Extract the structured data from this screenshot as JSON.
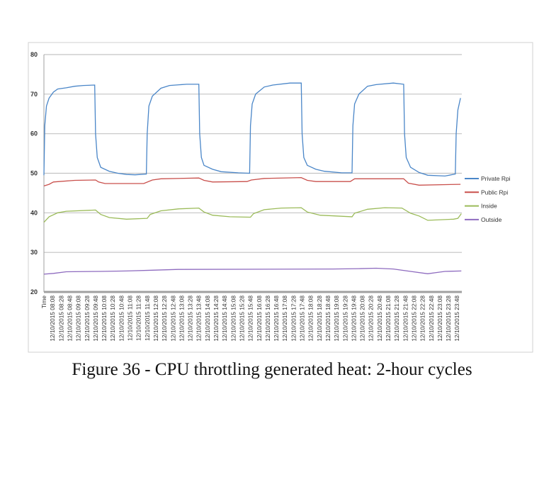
{
  "caption": "Figure 36 - CPU throttling generated heat: 2-hour cycles",
  "chart_data": {
    "type": "line",
    "title": "",
    "xlabel": "",
    "ylabel": "",
    "ylim": [
      20,
      80
    ],
    "yticks": [
      20,
      30,
      40,
      50,
      60,
      70,
      80
    ],
    "xlim": [
      "07:48",
      "23:59"
    ],
    "grid": "horizontal",
    "legend_position": "right",
    "x_tick_labels": [
      "Time",
      "12/10/2015 08:08",
      "12/10/2015 08:28",
      "12/10/2015 08:48",
      "12/10/2015 09:08",
      "12/10/2015 09:28",
      "12/10/2015 09:48",
      "12/10/2015 10:08",
      "12/10/2015 10:28",
      "12/10/2015 10:48",
      "12/10/2015 11:08",
      "12/10/2015 11:28",
      "12/10/2015 11:48",
      "12/10/2015 12:08",
      "12/10/2015 12:28",
      "12/10/2015 12:48",
      "12/10/2015 13:08",
      "12/10/2015 13:28",
      "12/10/2015 13:48",
      "12/10/2015 14:08",
      "12/10/2015 14:28",
      "12/10/2015 14:48",
      "12/10/2015 15:08",
      "12/10/2015 15:28",
      "12/10/2015 15:48",
      "12/10/2015 16:08",
      "12/10/2015 16:28",
      "12/10/2015 16:48",
      "12/10/2015 17:08",
      "12/10/2015 17:28",
      "12/10/2015 17:48",
      "12/10/2015 18:08",
      "12/10/2015 18:28",
      "12/10/2015 18:48",
      "12/10/2015 19:08",
      "12/10/2015 19:28",
      "12/10/2015 19:48",
      "12/10/2015 20:08",
      "12/10/2015 20:28",
      "12/10/2015 20:48",
      "12/10/2015 21:08",
      "12/10/2015 21:28",
      "12/10/2015 21:48",
      "12/10/2015 22:08",
      "12/10/2015 22:28",
      "12/10/2015 22:48",
      "12/10/2015 23:08",
      "12/10/2015 23:28",
      "12/10/2015 23:48"
    ],
    "series": [
      {
        "name": "Private Rpi",
        "color": "#4a86c8",
        "points": [
          [
            "07:48",
            49.5
          ],
          [
            "07:50",
            62
          ],
          [
            "07:54",
            67
          ],
          [
            "08:00",
            69
          ],
          [
            "08:10",
            70.5
          ],
          [
            "08:20",
            71.3
          ],
          [
            "08:40",
            71.6
          ],
          [
            "09:00",
            72
          ],
          [
            "09:20",
            72.2
          ],
          [
            "09:46",
            72.3
          ],
          [
            "09:48",
            60
          ],
          [
            "09:52",
            54
          ],
          [
            "10:00",
            51.5
          ],
          [
            "10:20",
            50.5
          ],
          [
            "10:40",
            50
          ],
          [
            "11:00",
            49.7
          ],
          [
            "11:20",
            49.6
          ],
          [
            "11:46",
            49.8
          ],
          [
            "11:48",
            60
          ],
          [
            "11:52",
            67
          ],
          [
            "12:00",
            69.5
          ],
          [
            "12:20",
            71.5
          ],
          [
            "12:40",
            72.2
          ],
          [
            "13:20",
            72.5
          ],
          [
            "13:48",
            72.5
          ],
          [
            "13:50",
            60
          ],
          [
            "13:54",
            54
          ],
          [
            "14:00",
            52
          ],
          [
            "14:20",
            51
          ],
          [
            "14:40",
            50.4
          ],
          [
            "15:20",
            50.1
          ],
          [
            "15:46",
            50
          ],
          [
            "15:48",
            62
          ],
          [
            "15:52",
            67.5
          ],
          [
            "16:00",
            70
          ],
          [
            "16:20",
            71.8
          ],
          [
            "16:40",
            72.3
          ],
          [
            "17:20",
            72.8
          ],
          [
            "17:46",
            72.8
          ],
          [
            "17:48",
            60
          ],
          [
            "17:52",
            54
          ],
          [
            "18:00",
            52
          ],
          [
            "18:20",
            51
          ],
          [
            "18:40",
            50.5
          ],
          [
            "19:20",
            50.1
          ],
          [
            "19:44",
            50.1
          ],
          [
            "19:46",
            62
          ],
          [
            "19:50",
            67.5
          ],
          [
            "20:00",
            70
          ],
          [
            "20:20",
            72
          ],
          [
            "20:40",
            72.4
          ],
          [
            "21:20",
            72.8
          ],
          [
            "21:44",
            72.5
          ],
          [
            "21:46",
            60
          ],
          [
            "21:50",
            54
          ],
          [
            "22:00",
            51.5
          ],
          [
            "22:20",
            50.2
          ],
          [
            "22:40",
            49.5
          ],
          [
            "23:20",
            49.3
          ],
          [
            "23:44",
            49.8
          ],
          [
            "23:46",
            60
          ],
          [
            "23:50",
            66
          ],
          [
            "23:56",
            69
          ]
        ]
      },
      {
        "name": "Public Rpi",
        "color": "#c9504c",
        "points": [
          [
            "07:48",
            46.8
          ],
          [
            "08:00",
            47.2
          ],
          [
            "08:10",
            47.8
          ],
          [
            "09:00",
            48.2
          ],
          [
            "09:48",
            48.3
          ],
          [
            "09:55",
            47.8
          ],
          [
            "10:10",
            47.4
          ],
          [
            "11:40",
            47.4
          ],
          [
            "12:00",
            48.3
          ],
          [
            "12:20",
            48.6
          ],
          [
            "13:48",
            48.8
          ],
          [
            "14:00",
            48.2
          ],
          [
            "14:20",
            47.8
          ],
          [
            "15:40",
            47.9
          ],
          [
            "15:50",
            48.3
          ],
          [
            "16:20",
            48.7
          ],
          [
            "17:46",
            48.9
          ],
          [
            "18:00",
            48.2
          ],
          [
            "18:20",
            47.9
          ],
          [
            "19:40",
            47.9
          ],
          [
            "19:50",
            48.6
          ],
          [
            "21:44",
            48.6
          ],
          [
            "21:55",
            47.5
          ],
          [
            "22:20",
            47.0
          ],
          [
            "23:56",
            47.2
          ]
        ]
      },
      {
        "name": "Inside",
        "color": "#9bbb59",
        "points": [
          [
            "07:48",
            37.6
          ],
          [
            "08:00",
            39
          ],
          [
            "08:20",
            40
          ],
          [
            "08:40",
            40.4
          ],
          [
            "09:48",
            40.7
          ],
          [
            "10:00",
            39.6
          ],
          [
            "10:20",
            38.8
          ],
          [
            "11:00",
            38.4
          ],
          [
            "11:48",
            38.6
          ],
          [
            "11:55",
            39.6
          ],
          [
            "12:20",
            40.5
          ],
          [
            "13:00",
            41
          ],
          [
            "13:48",
            41.2
          ],
          [
            "14:00",
            40.2
          ],
          [
            "14:20",
            39.4
          ],
          [
            "15:00",
            39
          ],
          [
            "15:48",
            38.9
          ],
          [
            "15:55",
            39.8
          ],
          [
            "16:20",
            40.8
          ],
          [
            "17:00",
            41.2
          ],
          [
            "17:46",
            41.3
          ],
          [
            "18:00",
            40.2
          ],
          [
            "18:30",
            39.4
          ],
          [
            "19:44",
            39
          ],
          [
            "19:50",
            39.9
          ],
          [
            "20:20",
            40.9
          ],
          [
            "21:00",
            41.3
          ],
          [
            "21:40",
            41.2
          ],
          [
            "22:00",
            39.9
          ],
          [
            "22:20",
            39.2
          ],
          [
            "22:40",
            38.1
          ],
          [
            "23:40",
            38.4
          ],
          [
            "23:50",
            38.6
          ],
          [
            "23:58",
            39.8
          ]
        ]
      },
      {
        "name": "Outside",
        "color": "#8e6bbf",
        "points": [
          [
            "07:48",
            24.5
          ],
          [
            "08:10",
            24.7
          ],
          [
            "08:40",
            25.1
          ],
          [
            "10:00",
            25.2
          ],
          [
            "11:00",
            25.3
          ],
          [
            "12:00",
            25.5
          ],
          [
            "13:00",
            25.7
          ],
          [
            "19:00",
            25.8
          ],
          [
            "20:00",
            25.9
          ],
          [
            "20:40",
            26.0
          ],
          [
            "21:20",
            25.8
          ],
          [
            "22:00",
            25.2
          ],
          [
            "22:40",
            24.6
          ],
          [
            "23:00",
            24.9
          ],
          [
            "23:20",
            25.2
          ],
          [
            "23:58",
            25.3
          ]
        ]
      }
    ]
  }
}
